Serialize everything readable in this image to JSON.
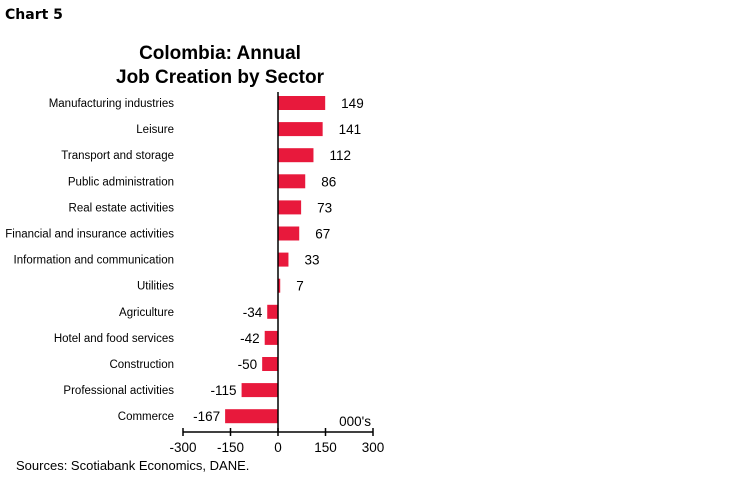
{
  "chart_label": "Chart 5",
  "chart_data": {
    "type": "bar",
    "orientation": "horizontal",
    "title_lines": [
      "Colombia: Annual",
      "Job Creation by Sector"
    ],
    "categories": [
      "Manufacturing industries",
      "Leisure",
      "Transport and storage",
      "Public administration",
      "Real estate activities",
      "Financial and insurance activities",
      "Information and communication",
      "Utilities",
      "Agriculture",
      "Hotel and food services",
      "Construction",
      "Professional activities",
      "Commerce"
    ],
    "values": [
      149,
      141,
      112,
      86,
      73,
      67,
      33,
      7,
      -34,
      -42,
      -50,
      -115,
      -167
    ],
    "unit_label": "000's",
    "xlim": [
      -300,
      300
    ],
    "x_ticks": [
      -300,
      -150,
      0,
      150,
      300
    ],
    "grid": false,
    "bar_color": "#e8193c"
  },
  "source": "Sources: Scotiabank Economics, DANE."
}
